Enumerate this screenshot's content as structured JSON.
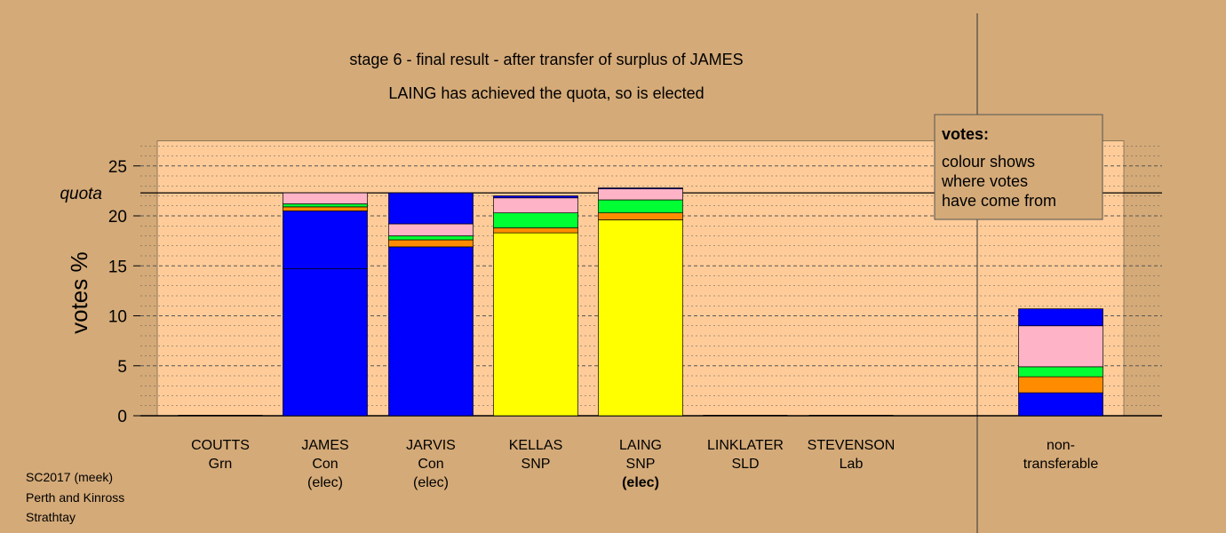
{
  "title": "stage 6 - final result - after transfer of surplus of JAMES",
  "subtitle": "LAING has achieved the quota, so is elected",
  "legend": {
    "title": "votes:",
    "lines": [
      "colour shows",
      "where votes",
      "have come from"
    ]
  },
  "footer": [
    "SC2017 (meek)",
    "Perth and Kinross",
    "Strathtay"
  ],
  "colors": {
    "background": "#d4aa78",
    "plot_background": "#ffcc99",
    "Con": "#0000ff",
    "SNP": "#ffff00",
    "Lab": "#ff8c00",
    "SLD": "#ff8c00",
    "Grn": "#00ff33",
    "Other": "#ffb3c6"
  },
  "chart_data": {
    "type": "bar",
    "stacked": true,
    "ylabel": "votes %",
    "ylim": [
      0,
      27.5
    ],
    "yticks": [
      0,
      5,
      10,
      15,
      20,
      25
    ],
    "grid": true,
    "quota": 22.3,
    "quota_label": "quota",
    "legend_position": "top-right",
    "candidates": [
      {
        "name": "COUTTS",
        "party": "Grn",
        "status": "",
        "segments": []
      },
      {
        "name": "JAMES",
        "party": "Con",
        "status": "(elec)",
        "internal_lines": [
          14.7
        ],
        "segments": [
          {
            "source": "Con",
            "value": 20.5
          },
          {
            "source": "Lab",
            "value": 0.4
          },
          {
            "source": "Grn",
            "value": 0.3
          },
          {
            "source": "Other",
            "value": 1.1
          }
        ]
      },
      {
        "name": "JARVIS",
        "party": "Con",
        "status": "(elec)",
        "internal_lines": [],
        "segments": [
          {
            "source": "Con",
            "value": 16.9
          },
          {
            "source": "Lab",
            "value": 0.7
          },
          {
            "source": "Grn",
            "value": 0.4
          },
          {
            "source": "Other",
            "value": 1.2
          },
          {
            "source": "Con",
            "value": 3.1
          }
        ]
      },
      {
        "name": "KELLAS",
        "party": "SNP",
        "status": "",
        "internal_lines": [],
        "segments": [
          {
            "source": "SNP",
            "value": 18.3
          },
          {
            "source": "Lab",
            "value": 0.5
          },
          {
            "source": "Grn",
            "value": 1.5
          },
          {
            "source": "Other",
            "value": 1.5
          },
          {
            "source": "Con",
            "value": 0.2
          }
        ]
      },
      {
        "name": "LAING",
        "party": "SNP",
        "status": "(elec)",
        "status_bold": true,
        "internal_lines": [],
        "segments": [
          {
            "source": "SNP",
            "value": 19.6
          },
          {
            "source": "Lab",
            "value": 0.7
          },
          {
            "source": "Grn",
            "value": 1.3
          },
          {
            "source": "Other",
            "value": 1.1
          },
          {
            "source": "Con",
            "value": 0.1
          }
        ]
      },
      {
        "name": "LINKLATER",
        "party": "SLD",
        "status": "",
        "segments": []
      },
      {
        "name": "STEVENSON",
        "party": "Lab",
        "status": "",
        "segments": []
      }
    ],
    "non_transferable": {
      "label": [
        "non-",
        "transferable"
      ],
      "segments": [
        {
          "source": "Con",
          "value": 2.3
        },
        {
          "source": "Lab",
          "value": 1.6
        },
        {
          "source": "Grn",
          "value": 1.0
        },
        {
          "source": "Other",
          "value": 4.1
        },
        {
          "source": "Con",
          "value": 1.7
        }
      ]
    }
  }
}
